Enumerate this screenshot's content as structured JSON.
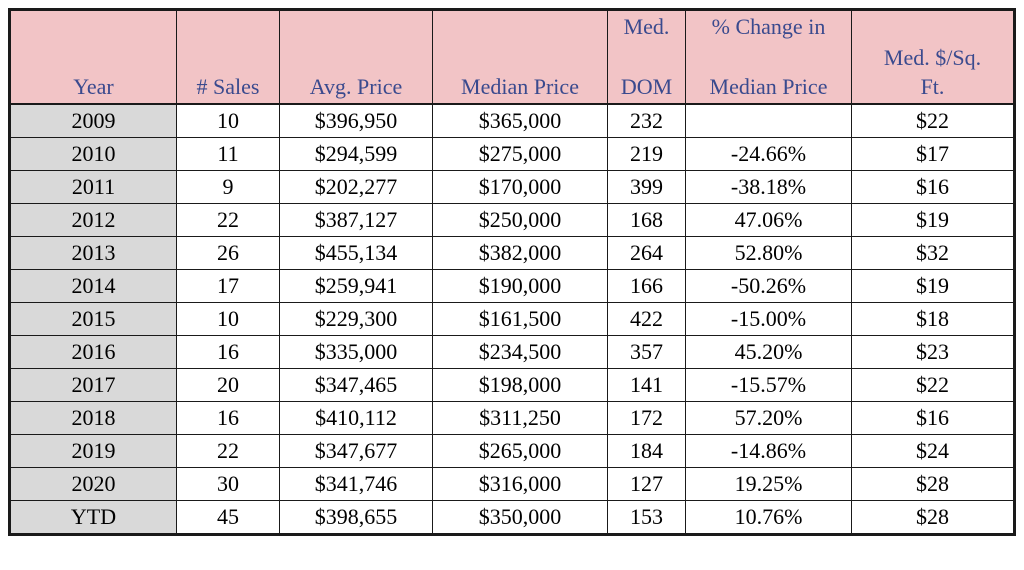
{
  "headers": {
    "year": "Year",
    "sales": "# Sales",
    "avg_price": "Avg. Price",
    "median_price": "Median Price",
    "dom_top": "Med.",
    "dom_bottom": "DOM",
    "change_top": "% Change in",
    "change_bottom": "Median Price",
    "sqft_line1": "Med. $/Sq.",
    "sqft_line2": "Ft."
  },
  "rows": [
    {
      "year": "2009",
      "sales": "10",
      "avg_price": "$396,950",
      "median_price": "$365,000",
      "dom": "232",
      "change": "",
      "sqft": "$22"
    },
    {
      "year": "2010",
      "sales": "11",
      "avg_price": "$294,599",
      "median_price": "$275,000",
      "dom": "219",
      "change": "-24.66%",
      "sqft": "$17"
    },
    {
      "year": "2011",
      "sales": "9",
      "avg_price": "$202,277",
      "median_price": "$170,000",
      "dom": "399",
      "change": "-38.18%",
      "sqft": "$16"
    },
    {
      "year": "2012",
      "sales": "22",
      "avg_price": "$387,127",
      "median_price": "$250,000",
      "dom": "168",
      "change": "47.06%",
      "sqft": "$19"
    },
    {
      "year": "2013",
      "sales": "26",
      "avg_price": "$455,134",
      "median_price": "$382,000",
      "dom": "264",
      "change": "52.80%",
      "sqft": "$32"
    },
    {
      "year": "2014",
      "sales": "17",
      "avg_price": "$259,941",
      "median_price": "$190,000",
      "dom": "166",
      "change": "-50.26%",
      "sqft": "$19"
    },
    {
      "year": "2015",
      "sales": "10",
      "avg_price": "$229,300",
      "median_price": "$161,500",
      "dom": "422",
      "change": "-15.00%",
      "sqft": "$18"
    },
    {
      "year": "2016",
      "sales": "16",
      "avg_price": "$335,000",
      "median_price": "$234,500",
      "dom": "357",
      "change": "45.20%",
      "sqft": "$23"
    },
    {
      "year": "2017",
      "sales": "20",
      "avg_price": "$347,465",
      "median_price": "$198,000",
      "dom": "141",
      "change": "-15.57%",
      "sqft": "$22"
    },
    {
      "year": "2018",
      "sales": "16",
      "avg_price": "$410,112",
      "median_price": "$311,250",
      "dom": "172",
      "change": "57.20%",
      "sqft": "$16"
    },
    {
      "year": "2019",
      "sales": "22",
      "avg_price": "$347,677",
      "median_price": "$265,000",
      "dom": "184",
      "change": "-14.86%",
      "sqft": "$24"
    },
    {
      "year": "2020",
      "sales": "30",
      "avg_price": "$341,746",
      "median_price": "$316,000",
      "dom": "127",
      "change": "19.25%",
      "sqft": "$28"
    },
    {
      "year": "YTD",
      "sales": "45",
      "avg_price": "$398,655",
      "median_price": "$350,000",
      "dom": "153",
      "change": "10.76%",
      "sqft": "$28"
    }
  ],
  "colors": {
    "header_bg": "#f2c4c6",
    "header_text": "#3a4a8e",
    "year_cell_bg": "#d9d9d9",
    "border": "#1a1a1a"
  }
}
